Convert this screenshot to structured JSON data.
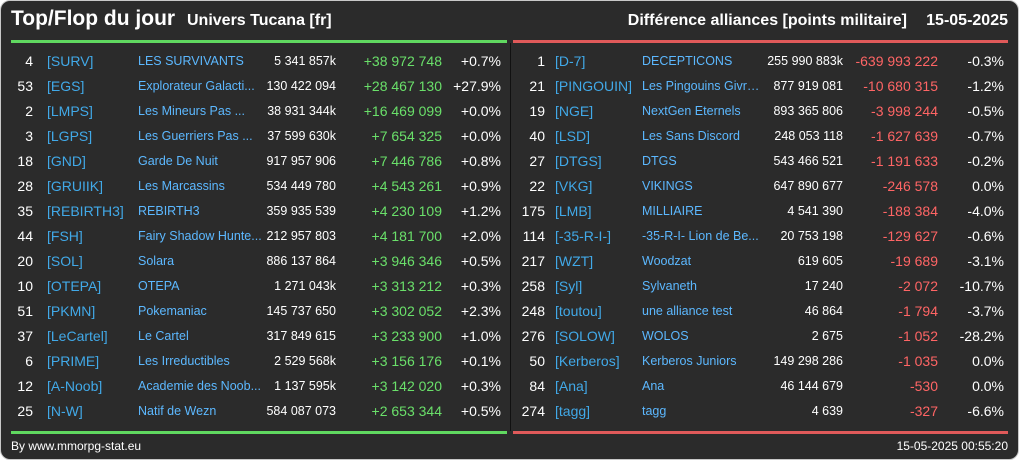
{
  "header": {
    "title": "Top/Flop du jour",
    "universe": "Univers Tucana [fr]",
    "stat": "Différence alliances [points militaire]",
    "date": "15-05-2025"
  },
  "colors": {
    "positive": "#6ae06a",
    "negative": "#ff6565",
    "tag": "#41a9e8",
    "name": "#5cb8ff"
  },
  "top": [
    {
      "rank": "4",
      "tag": "[SURV]",
      "name": "LES SURVIVANTS",
      "total": "5 341 857k",
      "diff": "+38 972 748",
      "pct": "+0.7%"
    },
    {
      "rank": "53",
      "tag": "[EGS]",
      "name": "Explorateur Galacti...",
      "total": "130 422 094",
      "diff": "+28 467 130",
      "pct": "+27.9%"
    },
    {
      "rank": "2",
      "tag": "[LMPS]",
      "name": "Les Mineurs Pas ...",
      "total": "38 931 344k",
      "diff": "+16 469 099",
      "pct": "+0.0%"
    },
    {
      "rank": "3",
      "tag": "[LGPS]",
      "name": "Les Guerriers Pas ...",
      "total": "37 599 630k",
      "diff": "+7 654 325",
      "pct": "+0.0%"
    },
    {
      "rank": "18",
      "tag": "[GND]",
      "name": "Garde De Nuit",
      "total": "917 957 906",
      "diff": "+7 446 786",
      "pct": "+0.8%"
    },
    {
      "rank": "28",
      "tag": "[GRUIIK]",
      "name": "Les Marcassins",
      "total": "534 449 780",
      "diff": "+4 543 261",
      "pct": "+0.9%"
    },
    {
      "rank": "35",
      "tag": "[REBIRTH3]",
      "name": "REBIRTH3",
      "total": "359 935 539",
      "diff": "+4 230 109",
      "pct": "+1.2%"
    },
    {
      "rank": "44",
      "tag": "[FSH]",
      "name": "Fairy Shadow Hunte...",
      "total": "212 957 803",
      "diff": "+4 181 700",
      "pct": "+2.0%"
    },
    {
      "rank": "20",
      "tag": "[SOL]",
      "name": "Solara",
      "total": "886 137 864",
      "diff": "+3 946 346",
      "pct": "+0.5%"
    },
    {
      "rank": "10",
      "tag": "[OTEPA]",
      "name": "OTEPA",
      "total": "1 271 043k",
      "diff": "+3 313 212",
      "pct": "+0.3%"
    },
    {
      "rank": "51",
      "tag": "[PKMN]",
      "name": "Pokemaniac",
      "total": "145 737 650",
      "diff": "+3 302 052",
      "pct": "+2.3%"
    },
    {
      "rank": "37",
      "tag": "[LeCartel]",
      "name": "Le Cartel",
      "total": "317 849 615",
      "diff": "+3 233 900",
      "pct": "+1.0%"
    },
    {
      "rank": "6",
      "tag": "[PRIME]",
      "name": "Les Irreductibles",
      "total": "2 529 568k",
      "diff": "+3 156 176",
      "pct": "+0.1%"
    },
    {
      "rank": "12",
      "tag": "[A-Noob]",
      "name": "Academie des Noob...",
      "total": "1 137 595k",
      "diff": "+3 142 020",
      "pct": "+0.3%"
    },
    {
      "rank": "25",
      "tag": "[N-W]",
      "name": "Natif de Wezn",
      "total": "584 087 073",
      "diff": "+2 653 344",
      "pct": "+0.5%"
    }
  ],
  "flop": [
    {
      "rank": "1",
      "tag": "[D-7]",
      "name": "DECEPTICONS",
      "total": "255 990 883k",
      "diff": "-639 993 222",
      "pct": "-0.3%"
    },
    {
      "rank": "21",
      "tag": "[PINGOUIN]",
      "name": "Les Pingouins Givre...",
      "total": "877 919 081",
      "diff": "-10 680 315",
      "pct": "-1.2%"
    },
    {
      "rank": "19",
      "tag": "[NGE]",
      "name": "NextGen Eternels",
      "total": "893 365 806",
      "diff": "-3 998 244",
      "pct": "-0.5%"
    },
    {
      "rank": "40",
      "tag": "[LSD]",
      "name": "Les Sans Discord",
      "total": "248 053 118",
      "diff": "-1 627 639",
      "pct": "-0.7%"
    },
    {
      "rank": "27",
      "tag": "[DTGS]",
      "name": "DTGS",
      "total": "543 466 521",
      "diff": "-1 191 633",
      "pct": "-0.2%"
    },
    {
      "rank": "22",
      "tag": "[VKG]",
      "name": "VIKINGS",
      "total": "647 890 677",
      "diff": "-246 578",
      "pct": "0.0%"
    },
    {
      "rank": "175",
      "tag": "[LMB]",
      "name": "MILLIAIRE",
      "total": "4 541 390",
      "diff": "-188 384",
      "pct": "-4.0%"
    },
    {
      "rank": "114",
      "tag": "[-35-R-I-]",
      "name": "-35-R-I- Lion de Be...",
      "total": "20 753 198",
      "diff": "-129 627",
      "pct": "-0.6%"
    },
    {
      "rank": "217",
      "tag": "[WZT]",
      "name": "Woodzat",
      "total": "619 605",
      "diff": "-19 689",
      "pct": "-3.1%"
    },
    {
      "rank": "258",
      "tag": "[Syl]",
      "name": "Sylvaneth",
      "total": "17 240",
      "diff": "-2 072",
      "pct": "-10.7%"
    },
    {
      "rank": "248",
      "tag": "[toutou]",
      "name": "une alliance test",
      "total": "46 864",
      "diff": "-1 794",
      "pct": "-3.7%"
    },
    {
      "rank": "276",
      "tag": "[SOLOW]",
      "name": "WOLOS",
      "total": "2 675",
      "diff": "-1 052",
      "pct": "-28.2%"
    },
    {
      "rank": "50",
      "tag": "[Kerberos]",
      "name": "Kerberos Juniors",
      "total": "149 298 286",
      "diff": "-1 035",
      "pct": "0.0%"
    },
    {
      "rank": "84",
      "tag": "[Ana]",
      "name": "Ana",
      "total": "46 144 679",
      "diff": "-530",
      "pct": "0.0%"
    },
    {
      "rank": "274",
      "tag": "[tagg]",
      "name": "tagg",
      "total": "4 639",
      "diff": "-327",
      "pct": "-6.6%"
    }
  ],
  "footer": {
    "source": "By www.mmorpg-stat.eu",
    "timestamp": "15-05-2025 00:55:20"
  }
}
